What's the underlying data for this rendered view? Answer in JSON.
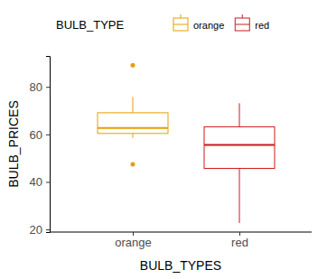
{
  "chart_data": {
    "type": "box",
    "x_label": "BULB_TYPES",
    "y_label": "BULB_PRICES",
    "legend": "top",
    "legend_title": "BULB_TYPE",
    "categories": [
      "orange",
      "red"
    ],
    "series": [
      {
        "name": "orange",
        "color": "#e69f00",
        "whislo": 58.5,
        "q1": 60.4,
        "med": 62.7,
        "q3": 69.1,
        "whishi": 75.8,
        "fliers": [
          47.4,
          89.1
        ]
      },
      {
        "name": "red",
        "color": "#cc1a1a",
        "whislo": 22.7,
        "q1": 45.7,
        "med": 55.6,
        "q3": 63.2,
        "whishi": 73.1,
        "fliers": []
      }
    ],
    "ylim": [
      18.9,
      93
    ],
    "yticks": [
      20,
      40,
      60,
      80
    ]
  }
}
